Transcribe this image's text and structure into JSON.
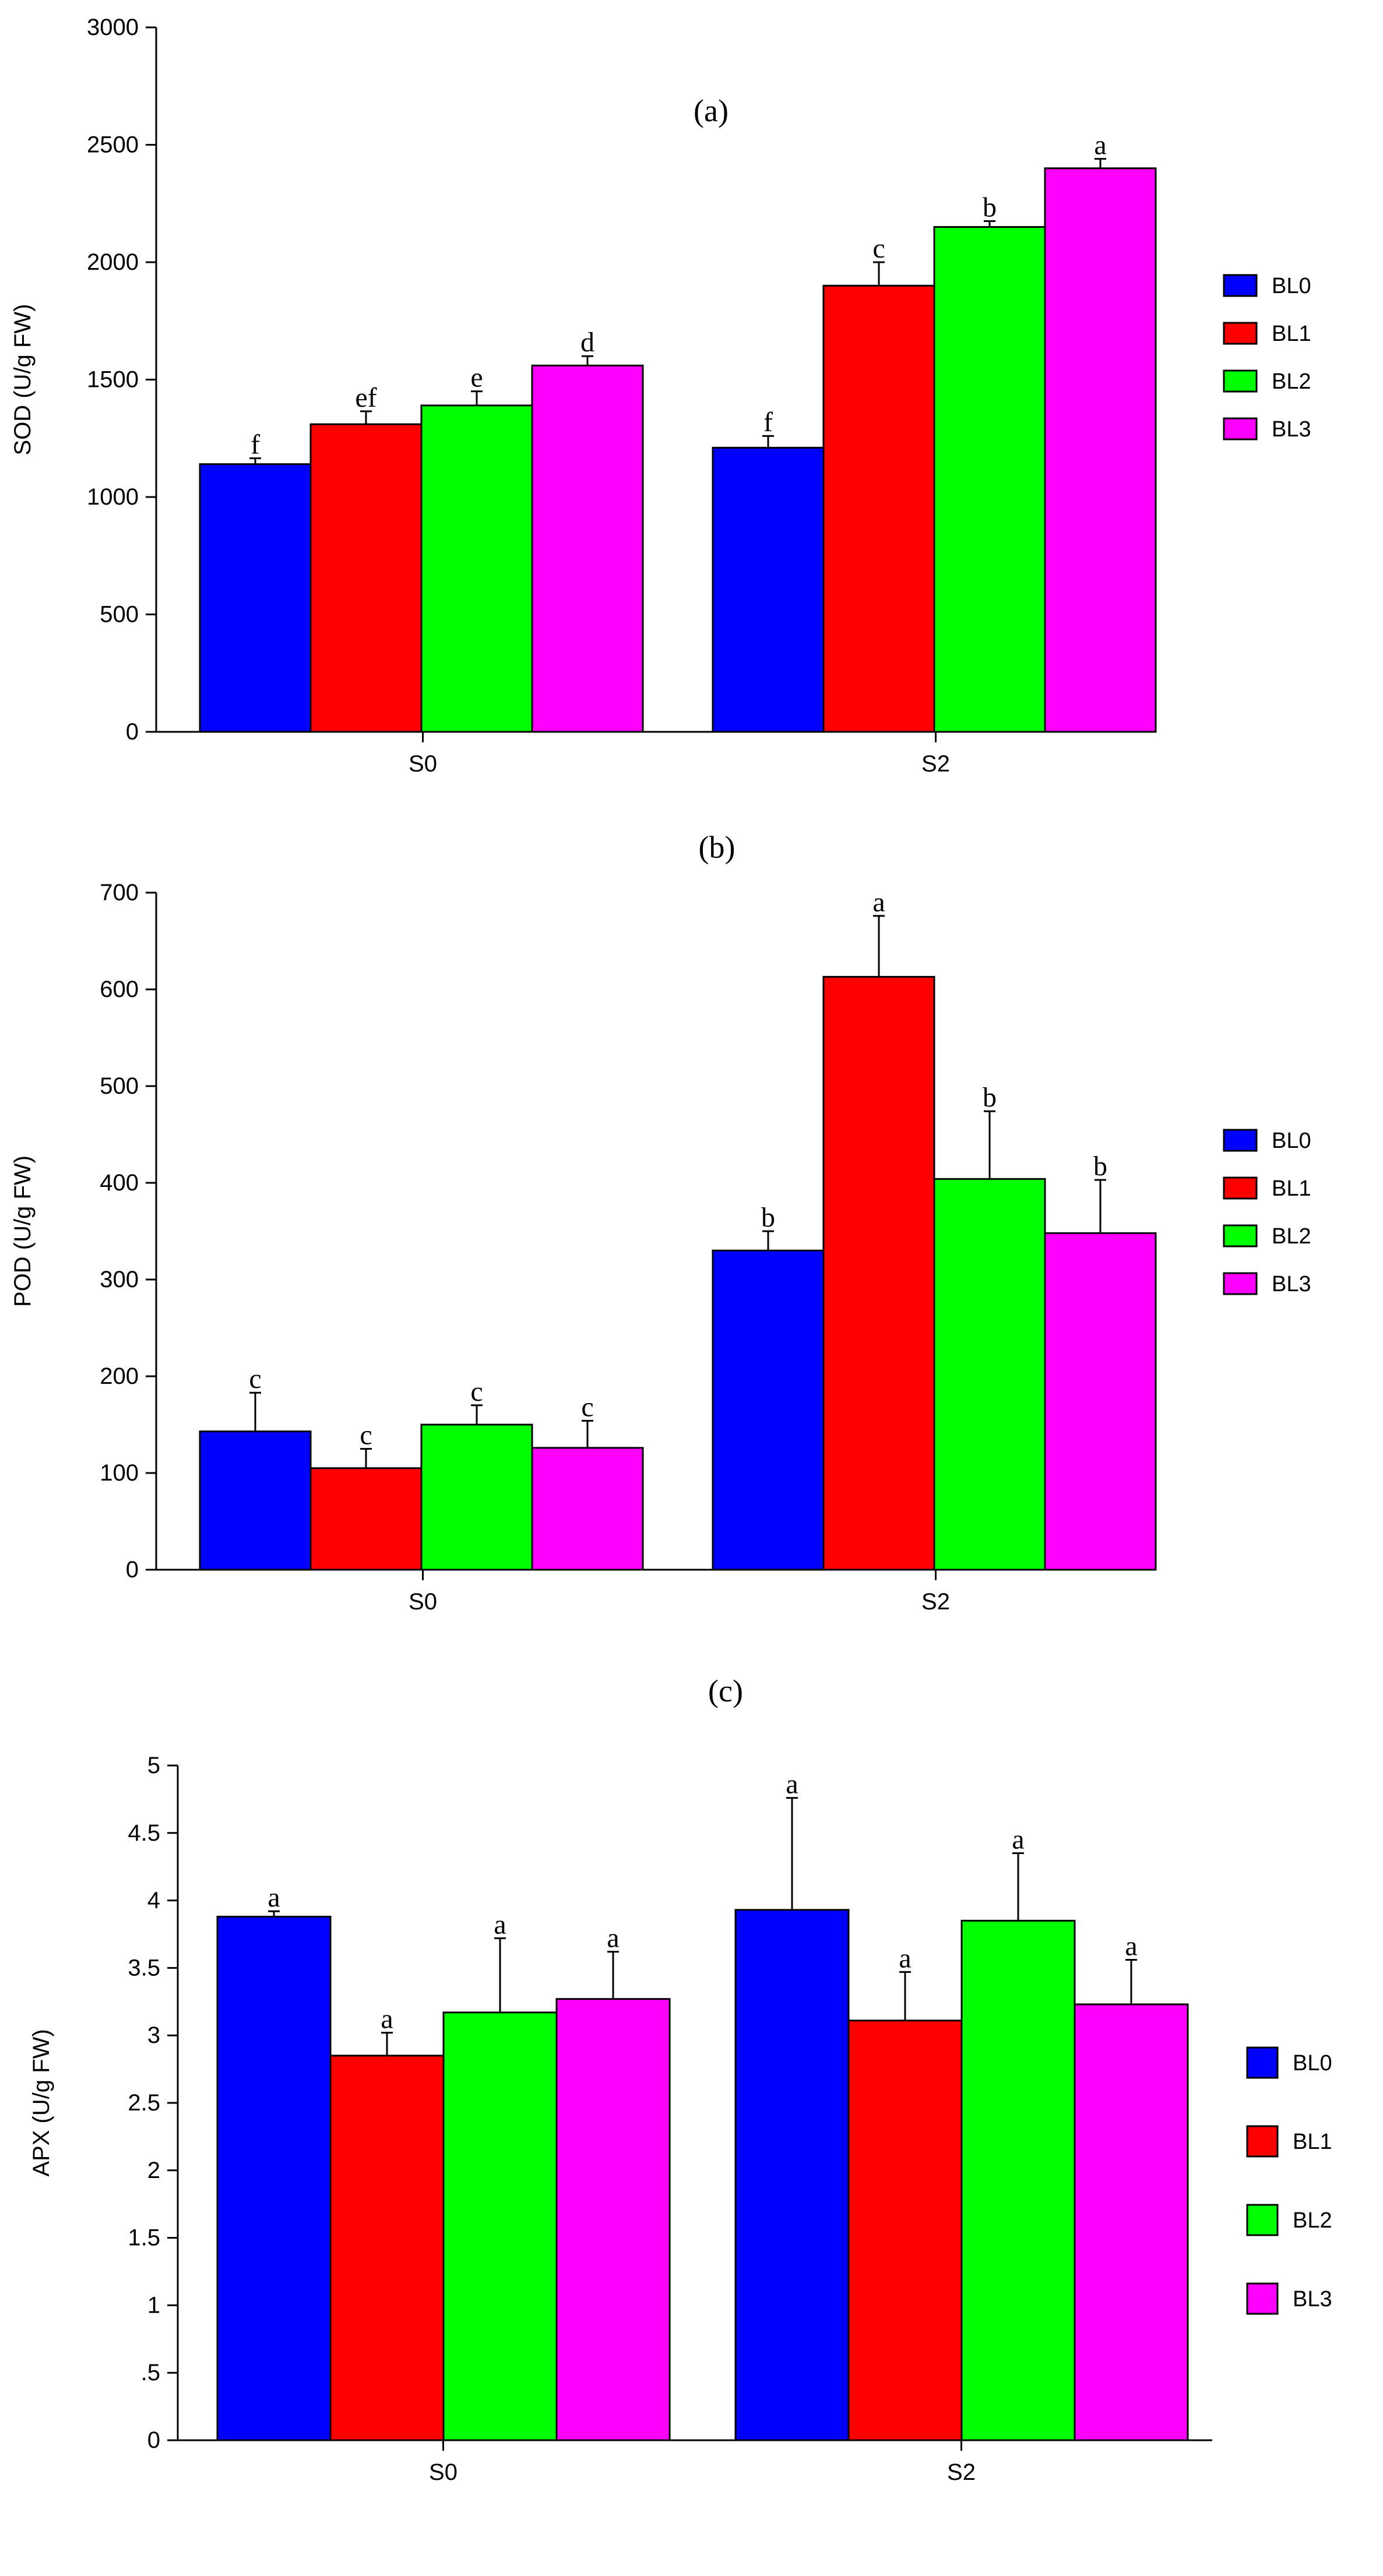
{
  "legend": [
    "BL0",
    "BL1",
    "BL2",
    "BL3"
  ],
  "colors": {
    "BL0": "#0000ff",
    "BL1": "#ff0000",
    "BL2": "#00ff00",
    "BL3": "#ff00ff"
  },
  "chart_data": [
    {
      "type": "bar",
      "title": "(a)",
      "ylabel": "SOD (U/g FW)",
      "xlabel": "",
      "categories": [
        "S0",
        "S2"
      ],
      "ylim": [
        0,
        3000
      ],
      "yticks": [
        0,
        500,
        1000,
        1500,
        2000,
        2500,
        3000
      ],
      "ytick_labels": [
        "0",
        "500",
        "1000",
        "1500",
        "2000",
        "2500",
        "3000"
      ],
      "series": [
        {
          "name": "BL0",
          "values": [
            1140,
            1210
          ],
          "errors": [
            25,
            50
          ],
          "letters": [
            "f",
            "f"
          ]
        },
        {
          "name": "BL1",
          "values": [
            1310,
            1900
          ],
          "errors": [
            55,
            100
          ],
          "letters": [
            "ef",
            "c"
          ]
        },
        {
          "name": "BL2",
          "values": [
            1390,
            2150
          ],
          "errors": [
            60,
            25
          ],
          "letters": [
            "e",
            "b"
          ]
        },
        {
          "name": "BL3",
          "values": [
            1560,
            2400
          ],
          "errors": [
            40,
            40
          ],
          "letters": [
            "d",
            "a"
          ]
        }
      ]
    },
    {
      "type": "bar",
      "title": "(b)",
      "ylabel": "POD (U/g FW)",
      "xlabel": "",
      "categories": [
        "S0",
        "S2"
      ],
      "ylim": [
        0,
        700
      ],
      "yticks": [
        0,
        100,
        200,
        300,
        400,
        500,
        600,
        700
      ],
      "ytick_labels": [
        "0",
        "100",
        "200",
        "300",
        "400",
        "500",
        "600",
        "700"
      ],
      "series": [
        {
          "name": "BL0",
          "values": [
            143,
            330
          ],
          "errors": [
            40,
            20
          ],
          "letters": [
            "c",
            "b"
          ]
        },
        {
          "name": "BL1",
          "values": [
            105,
            613
          ],
          "errors": [
            20,
            63
          ],
          "letters": [
            "c",
            "a"
          ]
        },
        {
          "name": "BL2",
          "values": [
            150,
            404
          ],
          "errors": [
            20,
            70
          ],
          "letters": [
            "c",
            "b"
          ]
        },
        {
          "name": "BL3",
          "values": [
            126,
            348
          ],
          "errors": [
            28,
            55
          ],
          "letters": [
            "c",
            "b"
          ]
        }
      ]
    },
    {
      "type": "bar",
      "title": "(c)",
      "ylabel": "APX (U/g FW)",
      "xlabel": "",
      "categories": [
        "S0",
        "S2"
      ],
      "ylim": [
        0,
        5
      ],
      "yticks": [
        0,
        0.5,
        1,
        1.5,
        2,
        2.5,
        3,
        3.5,
        4,
        4.5,
        5
      ],
      "ytick_labels": [
        "0",
        ".5",
        "1",
        "1.5",
        "2",
        "2.5",
        "3",
        "3.5",
        "4",
        "4.5",
        "5"
      ],
      "series": [
        {
          "name": "BL0",
          "values": [
            3.88,
            3.93
          ],
          "errors": [
            0.04,
            0.83
          ],
          "letters": [
            "a",
            "a"
          ]
        },
        {
          "name": "BL1",
          "values": [
            2.85,
            3.11
          ],
          "errors": [
            0.17,
            0.36
          ],
          "letters": [
            "a",
            "a"
          ]
        },
        {
          "name": "BL2",
          "values": [
            3.17,
            3.85
          ],
          "errors": [
            0.55,
            0.5
          ],
          "letters": [
            "a",
            "a"
          ]
        },
        {
          "name": "BL3",
          "values": [
            3.27,
            3.23
          ],
          "errors": [
            0.35,
            0.33
          ],
          "letters": [
            "a",
            "a"
          ]
        }
      ]
    }
  ]
}
